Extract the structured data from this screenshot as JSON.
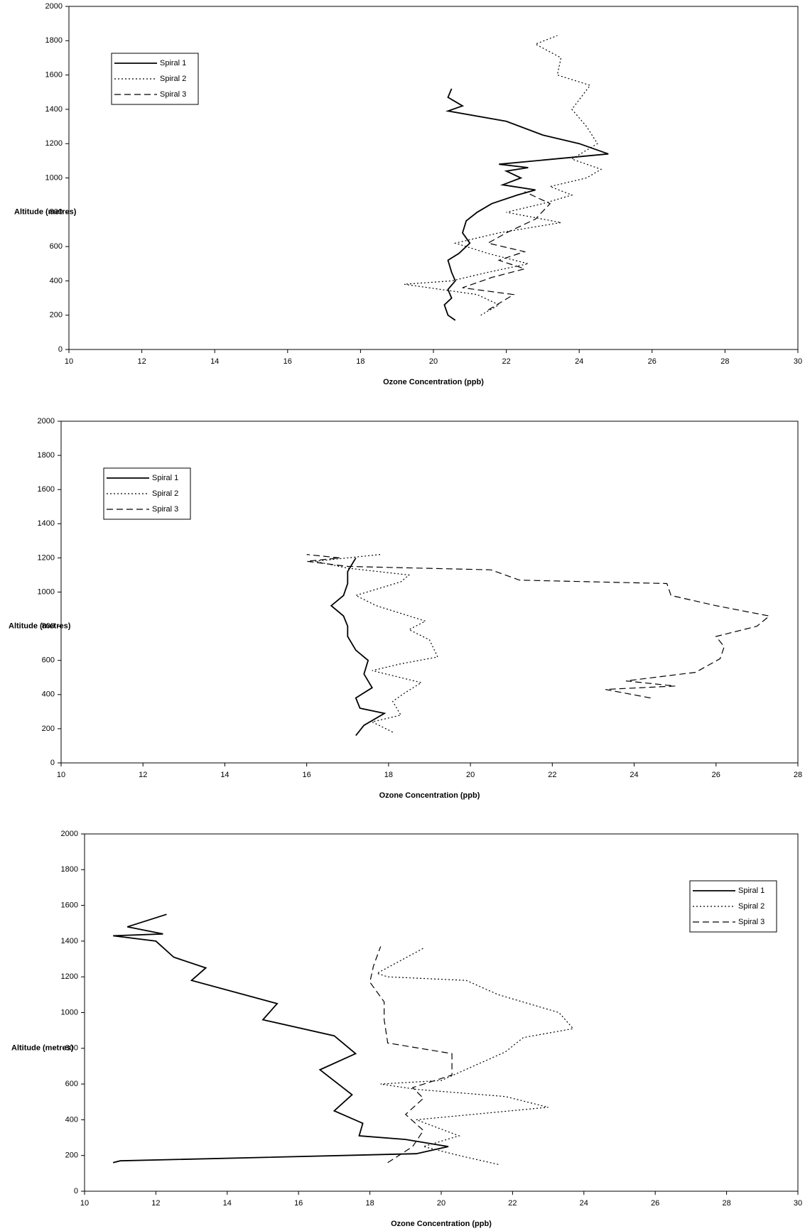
{
  "chart_data": [
    {
      "type": "line",
      "x_label": "Ozone Concentration (ppb)",
      "y_label": "Altitude (metres)",
      "xlim": [
        10,
        30
      ],
      "xticks": [
        10,
        12,
        14,
        16,
        18,
        20,
        22,
        24,
        26,
        28,
        30
      ],
      "ylim": [
        0,
        2000
      ],
      "yticks": [
        0,
        200,
        400,
        600,
        800,
        1000,
        1200,
        1400,
        1600,
        1800,
        2000
      ],
      "legend": "upper left",
      "series": [
        {
          "name": "Spiral 1",
          "color": "#000000",
          "dash": "solid",
          "x": [
            20.6,
            20.4,
            20.3,
            20.5,
            20.4,
            20.6,
            20.5,
            20.4,
            20.7,
            21.0,
            20.8,
            20.9,
            21.2,
            21.6,
            22.3,
            22.8,
            21.9,
            22.4,
            22.0,
            22.6,
            21.8,
            24.8,
            24.0,
            23.0,
            22.0,
            20.4,
            20.8,
            20.4,
            20.5
          ],
          "values": [
            170,
            200,
            260,
            300,
            350,
            400,
            450,
            520,
            560,
            620,
            680,
            750,
            800,
            850,
            900,
            930,
            960,
            1000,
            1040,
            1060,
            1080,
            1140,
            1200,
            1250,
            1330,
            1390,
            1420,
            1470,
            1520
          ]
        },
        {
          "name": "Spiral 2",
          "color": "#000000",
          "dash": "dotted",
          "x": [
            21.3,
            21.8,
            21.2,
            19.2,
            20.5,
            21.5,
            22.6,
            21.5,
            20.6,
            21.8,
            23.5,
            22.0,
            23.0,
            23.8,
            23.2,
            24.2,
            24.6,
            23.8,
            24.5,
            24.2,
            23.8,
            24.3,
            23.4,
            23.5,
            22.8,
            23.4
          ],
          "values": [
            200,
            260,
            320,
            380,
            400,
            450,
            500,
            560,
            620,
            680,
            740,
            800,
            850,
            900,
            950,
            1000,
            1050,
            1110,
            1200,
            1300,
            1400,
            1540,
            1600,
            1700,
            1780,
            1830
          ]
        },
        {
          "name": "Spiral 3",
          "color": "#000000",
          "dash": "dashed",
          "x": [
            21.5,
            22.2,
            20.8,
            21.6,
            22.5,
            21.8,
            22.5,
            21.5,
            22.0,
            22.8,
            23.2,
            22.5
          ],
          "values": [
            230,
            320,
            360,
            420,
            470,
            520,
            570,
            620,
            680,
            760,
            850,
            920
          ]
        }
      ]
    },
    {
      "type": "line",
      "x_label": "Ozone Concentration (ppb)",
      "y_label": "Altitude (metres)",
      "xlim": [
        10,
        28
      ],
      "xticks": [
        10,
        12,
        14,
        16,
        18,
        20,
        22,
        24,
        26,
        28
      ],
      "ylim": [
        0,
        2000
      ],
      "yticks": [
        0,
        200,
        400,
        600,
        800,
        1000,
        1200,
        1400,
        1600,
        1800,
        2000
      ],
      "legend": "upper left",
      "series": [
        {
          "name": "Spiral 1",
          "color": "#000000",
          "dash": "solid",
          "x": [
            17.2,
            17.4,
            17.9,
            17.3,
            17.2,
            17.6,
            17.4,
            17.5,
            17.2,
            17.0,
            17.0,
            16.9,
            16.6,
            16.9,
            17.0,
            17.0,
            17.2
          ],
          "values": [
            160,
            220,
            290,
            320,
            380,
            440,
            520,
            600,
            660,
            740,
            800,
            860,
            920,
            980,
            1050,
            1120,
            1200
          ]
        },
        {
          "name": "Spiral 2",
          "color": "#000000",
          "dash": "dotted",
          "x": [
            18.1,
            17.6,
            18.3,
            18.1,
            18.4,
            18.8,
            17.6,
            18.3,
            19.2,
            19.0,
            18.5,
            18.9,
            17.7,
            17.2,
            18.3,
            18.5,
            17.0,
            16.2,
            17.8
          ],
          "values": [
            180,
            240,
            280,
            360,
            410,
            470,
            540,
            580,
            620,
            720,
            780,
            830,
            920,
            980,
            1060,
            1100,
            1140,
            1180,
            1220
          ]
        },
        {
          "name": "Spiral 3",
          "color": "#000000",
          "dash": "dashed",
          "x": [
            24.4,
            23.3,
            25.0,
            23.8,
            25.5,
            26.1,
            26.2,
            26.0,
            27.0,
            27.3,
            26.0,
            24.9,
            24.8,
            21.2,
            20.5,
            17.0,
            16.0,
            16.8,
            16.0
          ],
          "values": [
            380,
            430,
            450,
            480,
            530,
            610,
            680,
            740,
            800,
            860,
            920,
            980,
            1050,
            1070,
            1130,
            1150,
            1180,
            1200,
            1220
          ]
        }
      ]
    },
    {
      "type": "line",
      "x_label": "Ozone Concentration (ppb)",
      "y_label": "Altitude (metres)",
      "xlim": [
        10,
        30
      ],
      "xticks": [
        10,
        12,
        14,
        16,
        18,
        20,
        22,
        24,
        26,
        28,
        30
      ],
      "ylim": [
        0,
        2000
      ],
      "yticks": [
        0,
        200,
        400,
        600,
        800,
        1000,
        1200,
        1400,
        1600,
        1800,
        2000
      ],
      "legend": "upper right",
      "series": [
        {
          "name": "Spiral 1",
          "color": "#000000",
          "dash": "solid",
          "x": [
            10.8,
            11.0,
            19.3,
            20.2,
            19.0,
            17.7,
            17.8,
            17.0,
            17.5,
            16.6,
            17.6,
            17.0,
            15.0,
            15.4,
            13.0,
            13.4,
            12.5,
            12.0,
            10.8,
            12.2,
            11.2,
            12.3
          ],
          "values": [
            160,
            170,
            210,
            250,
            290,
            310,
            380,
            450,
            540,
            680,
            770,
            870,
            960,
            1050,
            1180,
            1250,
            1310,
            1400,
            1430,
            1440,
            1480,
            1550
          ]
        },
        {
          "name": "Spiral 2",
          "color": "#000000",
          "dash": "dotted",
          "x": [
            21.6,
            20.5,
            19.5,
            20.5,
            19.3,
            23.0,
            21.8,
            19.3,
            18.3,
            20.0,
            21.8,
            22.3,
            23.7,
            23.3,
            21.6,
            20.7,
            18.5,
            18.2,
            19.5
          ],
          "values": [
            150,
            200,
            250,
            310,
            400,
            470,
            530,
            570,
            600,
            620,
            780,
            860,
            910,
            1000,
            1100,
            1180,
            1200,
            1220,
            1360
          ]
        },
        {
          "name": "Spiral 3",
          "color": "#000000",
          "dash": "dashed",
          "x": [
            18.5,
            19.2,
            19.5,
            19.0,
            19.5,
            19.2,
            20.3,
            20.3,
            18.5,
            18.4,
            18.4,
            18.0,
            18.1,
            18.3
          ],
          "values": [
            160,
            250,
            340,
            430,
            520,
            580,
            650,
            770,
            830,
            960,
            1060,
            1170,
            1260,
            1370
          ]
        }
      ]
    }
  ]
}
